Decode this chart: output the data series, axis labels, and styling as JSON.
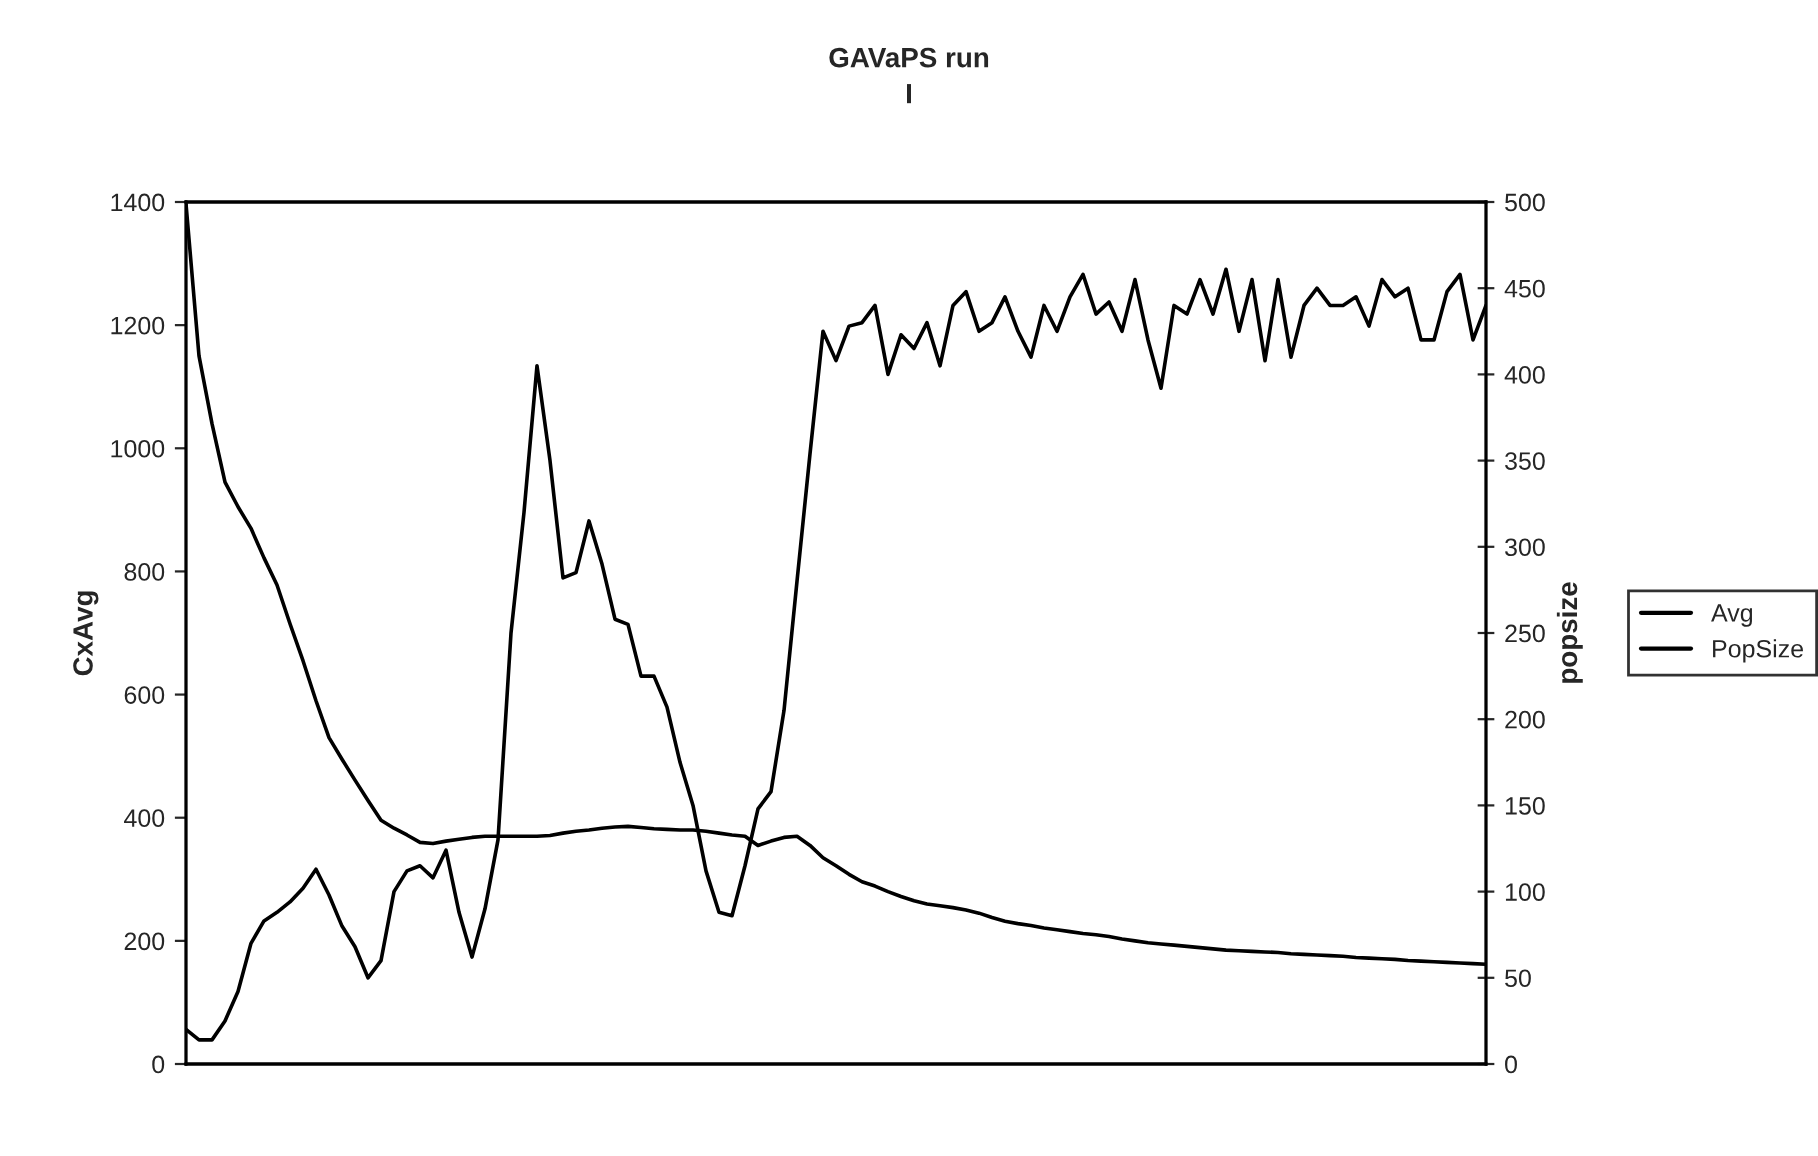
{
  "chart_data": {
    "type": "line",
    "title": "GAVaPS run",
    "subtitle": "I",
    "ylabel": "CxAvg",
    "y2label": "popsize",
    "categories": [
      null,
      null,
      null,
      null,
      null,
      null,
      null,
      null,
      null,
      null,
      null,
      null,
      null,
      null,
      null,
      null,
      null,
      null,
      null,
      null,
      null,
      null,
      null,
      null,
      null,
      null,
      null,
      null,
      null,
      null,
      null,
      null,
      null,
      null,
      null,
      null,
      null,
      null,
      null,
      null,
      null,
      null,
      null,
      null,
      null,
      null,
      null,
      null,
      null,
      null,
      null,
      null,
      null,
      null,
      null,
      null,
      null,
      null,
      null,
      null,
      null,
      null,
      null,
      null,
      null,
      null,
      null,
      null,
      null,
      null,
      null,
      null,
      null,
      null,
      null,
      null,
      null,
      null,
      null,
      null,
      null,
      null,
      null,
      null,
      null,
      null,
      null,
      null,
      null,
      null,
      null,
      null,
      null,
      null,
      null,
      null,
      null,
      null,
      null,
      null,
      null
    ],
    "ylim": [
      0,
      1400
    ],
    "yticks": [
      0,
      200,
      400,
      600,
      800,
      1000,
      1200,
      1400
    ],
    "y2lim": [
      0,
      500
    ],
    "y2ticks": [
      0,
      50,
      100,
      150,
      200,
      250,
      300,
      350,
      400,
      450,
      500
    ],
    "tick_labels": "y",
    "grid": false,
    "legend": "right",
    "marker": "none",
    "line_style": "solid",
    "series": [
      {
        "name": "Avg",
        "color": "#000000",
        "values": [
          1397,
          1150,
          1040,
          945,
          905,
          870,
          822,
          778,
          715,
          655,
          590,
          530,
          495,
          461,
          428,
          396,
          383,
          372,
          360,
          358,
          362,
          365,
          368,
          370,
          370,
          370,
          370,
          370,
          371,
          375,
          378,
          380,
          383,
          385,
          386,
          384,
          382,
          381,
          380,
          380,
          378,
          375,
          372,
          370,
          355,
          362,
          368,
          370,
          355,
          335,
          322,
          308,
          296,
          289,
          280,
          272,
          265,
          260,
          257,
          254,
          250,
          245,
          238,
          232,
          228,
          225,
          221,
          218,
          215,
          212,
          210,
          207,
          203,
          200,
          197,
          195,
          193,
          191,
          189,
          187,
          185,
          184,
          183,
          182,
          181,
          179,
          178,
          177,
          176,
          175,
          173,
          172,
          171,
          170,
          168,
          167,
          166,
          165,
          164,
          163,
          162
        ]
      },
      {
        "name": "PopSize",
        "color": "#000000",
        "axis": "y2",
        "values": [
          20,
          14,
          14,
          25,
          42,
          70,
          83,
          88,
          94,
          102,
          113,
          98,
          80,
          68,
          50,
          60,
          100,
          112,
          115,
          108,
          124,
          88,
          62,
          90,
          130,
          250,
          320,
          405,
          350,
          282,
          285,
          315,
          290,
          258,
          255,
          225,
          225,
          207,
          175,
          150,
          112,
          88,
          86,
          115,
          148,
          158,
          205,
          280,
          354,
          425,
          408,
          428,
          430,
          440,
          400,
          423,
          415,
          430,
          405,
          440,
          448,
          425,
          430,
          445,
          425,
          410,
          440,
          425,
          445,
          458,
          435,
          442,
          425,
          455,
          420,
          392,
          440,
          435,
          455,
          435,
          461,
          425,
          455,
          408,
          455,
          410,
          440,
          450,
          440,
          440,
          445,
          428,
          455,
          445,
          450,
          420,
          420,
          448,
          458,
          420,
          440
        ]
      }
    ]
  }
}
